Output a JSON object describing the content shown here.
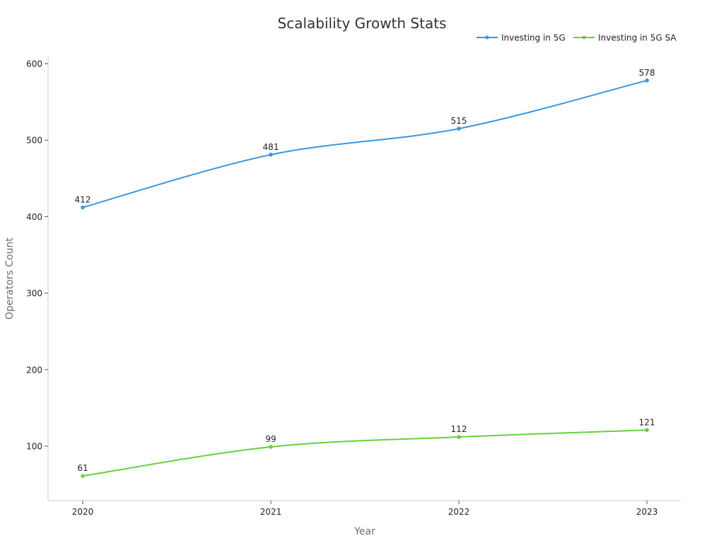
{
  "chart_data": {
    "type": "line",
    "title": "Scalability Growth Stats",
    "xlabel": "Year",
    "ylabel": "Operators Count",
    "categories": [
      "2020",
      "2021",
      "2022",
      "2023"
    ],
    "yticks": [
      100,
      200,
      300,
      400,
      500,
      600
    ],
    "ylim": [
      30,
      610
    ],
    "grid": false,
    "legend_position": "top-right",
    "series": [
      {
        "name": "Investing in 5G",
        "color": "#3a97e0",
        "values": [
          412,
          481,
          515,
          578
        ]
      },
      {
        "name": "Investing in 5G SA",
        "color": "#66d13d",
        "values": [
          61,
          99,
          112,
          121
        ]
      }
    ]
  }
}
